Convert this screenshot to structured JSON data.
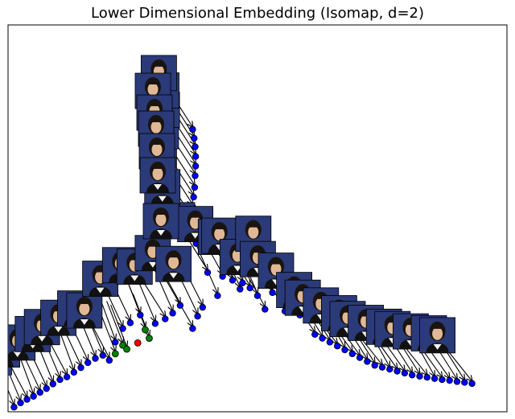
{
  "chart_data": {
    "type": "scatter",
    "title": "Lower Dimensional Embedding (Isomap, d=2)",
    "xlabel": "",
    "ylabel": "",
    "axis_ticks": "none",
    "xlim": [
      0,
      100
    ],
    "ylim": [
      0,
      100
    ],
    "thumbnail_icon": "face-photo-thumbnail",
    "colors": {
      "default_point": "#0000ff",
      "highlight_point": "#008000",
      "query_point": "#ff0000",
      "arrow": "#000000",
      "thumbnail_bg": "#2b3a78"
    },
    "series": [
      {
        "points": [
          {
            "x": 1.2,
            "y": 1.2,
            "thumb": false
          },
          {
            "x": 2.5,
            "y": 2.3,
            "thumb": false
          },
          {
            "x": 3.8,
            "y": 3.2,
            "thumb": false
          },
          {
            "x": 5.1,
            "y": 4.0,
            "thumb": false
          },
          {
            "x": 6.4,
            "y": 5.0,
            "thumb": false
          },
          {
            "x": 7.7,
            "y": 6.0,
            "thumb": false
          },
          {
            "x": 9.0,
            "y": 7.2,
            "thumb": false
          },
          {
            "x": 10.4,
            "y": 8.3,
            "thumb": false
          },
          {
            "x": 11.8,
            "y": 9.0,
            "thumb": false
          },
          {
            "x": 13.2,
            "y": 10.2,
            "thumb": false
          },
          {
            "x": 14.6,
            "y": 11.4,
            "thumb": false
          },
          {
            "x": 16.0,
            "y": 12.7,
            "thumb": false
          },
          {
            "x": 17.5,
            "y": 13.8,
            "thumb": false
          },
          {
            "x": 19.0,
            "y": 14.6,
            "thumb": false
          },
          {
            "x": 20.3,
            "y": 13.3,
            "thumb": false
          },
          {
            "x": 21.5,
            "y": 18.0,
            "thumb": false
          },
          {
            "x": 23.0,
            "y": 21.5,
            "thumb": false
          },
          {
            "x": 24.5,
            "y": 23.0,
            "thumb": false
          },
          {
            "x": 26.5,
            "y": 25.0,
            "thumb": false
          },
          {
            "x": 29.5,
            "y": 22.8,
            "thumb": false
          },
          {
            "x": 31.5,
            "y": 24.0,
            "thumb": false
          },
          {
            "x": 33.0,
            "y": 25.5,
            "thumb": false
          },
          {
            "x": 34.5,
            "y": 27.5,
            "thumb": false
          },
          {
            "x": 37.0,
            "y": 21.5,
            "thumb": false
          },
          {
            "x": 38.0,
            "y": 24.7,
            "thumb": false
          },
          {
            "x": 39.0,
            "y": 27.0,
            "thumb": false
          },
          {
            "x": 40.0,
            "y": 36.0,
            "thumb": false
          },
          {
            "x": 42.0,
            "y": 30.0,
            "thumb": false
          },
          {
            "x": 43.0,
            "y": 35.0,
            "thumb": false
          },
          {
            "x": 45.0,
            "y": 34.0,
            "thumb": false
          },
          {
            "x": 46.5,
            "y": 31.7,
            "thumb": false
          },
          {
            "x": 47.0,
            "y": 33.3,
            "thumb": false
          },
          {
            "x": 48.5,
            "y": 32.0,
            "thumb": false
          },
          {
            "x": 50.0,
            "y": 30.0,
            "thumb": false
          },
          {
            "x": 51.5,
            "y": 26.5,
            "thumb": false
          },
          {
            "x": 53.0,
            "y": 30.8,
            "thumb": false
          },
          {
            "x": 54.0,
            "y": 32.5,
            "thumb": false
          },
          {
            "x": 55.5,
            "y": 26.0,
            "thumb": false
          },
          {
            "x": 57.0,
            "y": 27.0,
            "thumb": false
          },
          {
            "x": 58.5,
            "y": 25.0,
            "thumb": false
          },
          {
            "x": 60.0,
            "y": 24.0,
            "thumb": false
          },
          {
            "x": 61.5,
            "y": 20.0,
            "thumb": false
          },
          {
            "x": 63.0,
            "y": 19.0,
            "thumb": false
          },
          {
            "x": 64.5,
            "y": 18.0,
            "thumb": false
          },
          {
            "x": 66.0,
            "y": 17.0,
            "thumb": false
          },
          {
            "x": 67.5,
            "y": 16.0,
            "thumb": false
          },
          {
            "x": 69.0,
            "y": 15.0,
            "thumb": false
          },
          {
            "x": 70.5,
            "y": 14.0,
            "thumb": false
          },
          {
            "x": 72.0,
            "y": 13.0,
            "thumb": false
          },
          {
            "x": 73.5,
            "y": 12.0,
            "thumb": false
          },
          {
            "x": 75.0,
            "y": 11.5,
            "thumb": false
          },
          {
            "x": 76.5,
            "y": 11.0,
            "thumb": false
          },
          {
            "x": 78.0,
            "y": 10.5,
            "thumb": false
          },
          {
            "x": 79.5,
            "y": 10.0,
            "thumb": false
          },
          {
            "x": 81.0,
            "y": 9.5,
            "thumb": false
          },
          {
            "x": 82.5,
            "y": 9.2,
            "thumb": false
          },
          {
            "x": 84.0,
            "y": 8.9,
            "thumb": false
          },
          {
            "x": 85.5,
            "y": 8.6,
            "thumb": false
          },
          {
            "x": 87.0,
            "y": 8.3,
            "thumb": false
          },
          {
            "x": 88.5,
            "y": 8.1,
            "thumb": false
          },
          {
            "x": 90.0,
            "y": 7.8,
            "thumb": false
          },
          {
            "x": 91.5,
            "y": 7.6,
            "thumb": false
          },
          {
            "x": 93.0,
            "y": 7.3,
            "thumb": false
          },
          {
            "x": 36.5,
            "y": 50.5,
            "thumb": false
          },
          {
            "x": 37.0,
            "y": 53.0,
            "thumb": false
          },
          {
            "x": 37.2,
            "y": 55.5,
            "thumb": false
          },
          {
            "x": 37.4,
            "y": 58.0,
            "thumb": false
          },
          {
            "x": 37.5,
            "y": 61.0,
            "thumb": false
          },
          {
            "x": 37.6,
            "y": 63.5,
            "thumb": false
          },
          {
            "x": 37.6,
            "y": 66.0,
            "thumb": false
          },
          {
            "x": 37.5,
            "y": 68.5,
            "thumb": false
          },
          {
            "x": 37.3,
            "y": 70.7,
            "thumb": false
          },
          {
            "x": 37.0,
            "y": 73.0,
            "thumb": false
          },
          {
            "x": 37.5,
            "y": 46.5,
            "thumb": false
          },
          {
            "x": 37.7,
            "y": 43.5,
            "thumb": false
          }
        ]
      },
      {
        "name": "",
        "highlight": true,
        "points": [
          {
            "x": 21.5,
            "y": 15.0
          },
          {
            "x": 23.0,
            "y": 17.2
          },
          {
            "x": 23.8,
            "y": 16.2
          },
          {
            "x": 27.5,
            "y": 21.2
          },
          {
            "x": 28.3,
            "y": 19.0
          }
        ]
      },
      {
        "name": "",
        "query": true,
        "points": [
          {
            "x": 26.0,
            "y": 17.8
          }
        ]
      }
    ]
  }
}
